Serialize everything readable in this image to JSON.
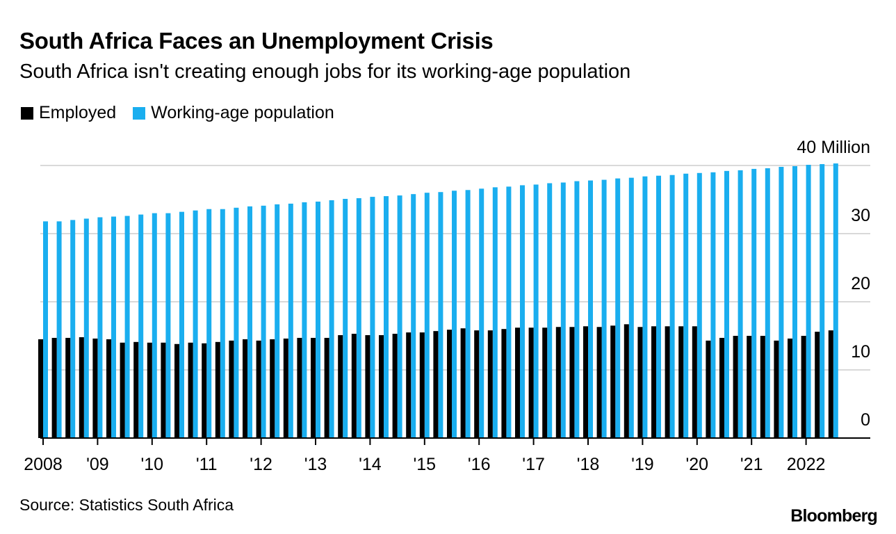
{
  "title": "South Africa Faces an Unemployment Crisis",
  "subtitle": "South Africa isn't creating enough jobs for its working-age population",
  "source": "Source: Statistics South Africa",
  "logo": "Bloomberg",
  "colors": {
    "employed": "#000000",
    "population": "#1aaeef",
    "grid": "#d9d9d9",
    "axis": "#000000"
  },
  "chart_data": {
    "type": "bar",
    "unit_label": "40 Million",
    "ylim": [
      0,
      40
    ],
    "yticks": [
      0,
      10,
      20,
      30,
      40
    ],
    "ytick_labels": [
      "0",
      "10",
      "20",
      "30",
      "40 Million"
    ],
    "grid": true,
    "legend_position": "top-left",
    "x_labels": [
      "2008",
      "'09",
      "'10",
      "'11",
      "'12",
      "'13",
      "'14",
      "'15",
      "'16",
      "'17",
      "'18",
      "'19",
      "'20",
      "'21",
      "2022"
    ],
    "categories": [
      "2008 Q1",
      "2008 Q2",
      "2008 Q3",
      "2008 Q4",
      "2009 Q1",
      "2009 Q2",
      "2009 Q3",
      "2009 Q4",
      "2010 Q1",
      "2010 Q2",
      "2010 Q3",
      "2010 Q4",
      "2011 Q1",
      "2011 Q2",
      "2011 Q3",
      "2011 Q4",
      "2012 Q1",
      "2012 Q2",
      "2012 Q3",
      "2012 Q4",
      "2013 Q1",
      "2013 Q2",
      "2013 Q3",
      "2013 Q4",
      "2014 Q1",
      "2014 Q2",
      "2014 Q3",
      "2014 Q4",
      "2015 Q1",
      "2015 Q2",
      "2015 Q3",
      "2015 Q4",
      "2016 Q1",
      "2016 Q2",
      "2016 Q3",
      "2016 Q4",
      "2017 Q1",
      "2017 Q2",
      "2017 Q3",
      "2017 Q4",
      "2018 Q1",
      "2018 Q2",
      "2018 Q3",
      "2018 Q4",
      "2019 Q1",
      "2019 Q2",
      "2019 Q3",
      "2019 Q4",
      "2020 Q1",
      "2020 Q2",
      "2020 Q3",
      "2020 Q4",
      "2021 Q1",
      "2021 Q2",
      "2021 Q3",
      "2021 Q4",
      "2022 Q1",
      "2022 Q2",
      "2022 Q3"
    ],
    "series": [
      {
        "name": "Employed",
        "values": [
          14.5,
          14.7,
          14.7,
          14.8,
          14.6,
          14.5,
          14.0,
          14.1,
          14.0,
          14.0,
          13.8,
          14.0,
          13.9,
          14.1,
          14.3,
          14.5,
          14.3,
          14.5,
          14.6,
          14.7,
          14.7,
          14.7,
          15.1,
          15.3,
          15.1,
          15.1,
          15.3,
          15.5,
          15.5,
          15.7,
          15.9,
          16.1,
          15.8,
          15.8,
          16.0,
          16.2,
          16.2,
          16.2,
          16.3,
          16.3,
          16.4,
          16.3,
          16.5,
          16.7,
          16.3,
          16.4,
          16.4,
          16.4,
          16.4,
          14.3,
          14.7,
          15.0,
          15.0,
          15.0,
          14.3,
          14.6,
          15.0,
          15.6,
          15.8
        ]
      },
      {
        "name": "Working-age population",
        "values": [
          31.8,
          31.8,
          32.0,
          32.2,
          32.4,
          32.5,
          32.6,
          32.8,
          33.0,
          33.0,
          33.2,
          33.4,
          33.6,
          33.6,
          33.8,
          34.0,
          34.1,
          34.3,
          34.4,
          34.6,
          34.7,
          34.9,
          35.1,
          35.2,
          35.4,
          35.5,
          35.6,
          35.8,
          36.0,
          36.1,
          36.3,
          36.4,
          36.6,
          36.8,
          36.9,
          37.1,
          37.2,
          37.4,
          37.5,
          37.7,
          37.8,
          37.9,
          38.1,
          38.2,
          38.4,
          38.5,
          38.6,
          38.8,
          38.9,
          39.0,
          39.2,
          39.3,
          39.5,
          39.6,
          39.8,
          39.9,
          40.1,
          40.2,
          40.3
        ]
      }
    ]
  }
}
